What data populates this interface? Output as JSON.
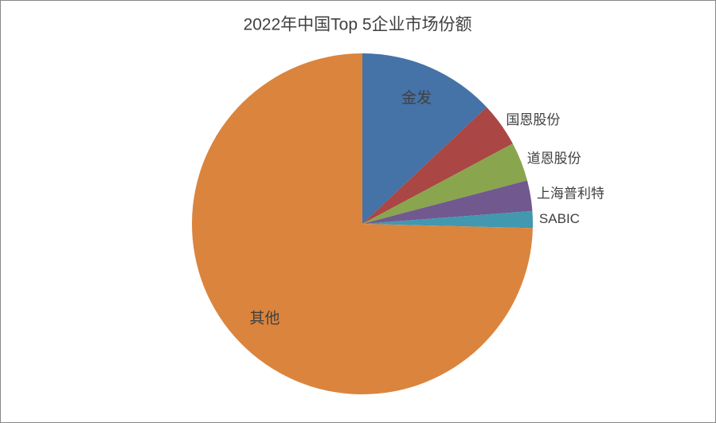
{
  "chart_data": {
    "type": "pie",
    "title": "2022年中国Top 5企业市场份额",
    "categories": [
      "金发",
      "国恩股份",
      "道恩股份",
      "上海普利特",
      "SABIC",
      "其他"
    ],
    "values": [
      13,
      4.2,
      3.7,
      2.9,
      1.6,
      74.6
    ],
    "colors": [
      "#4572a7",
      "#aa4643",
      "#89a54e",
      "#71588f",
      "#4198af",
      "#db843d"
    ]
  }
}
